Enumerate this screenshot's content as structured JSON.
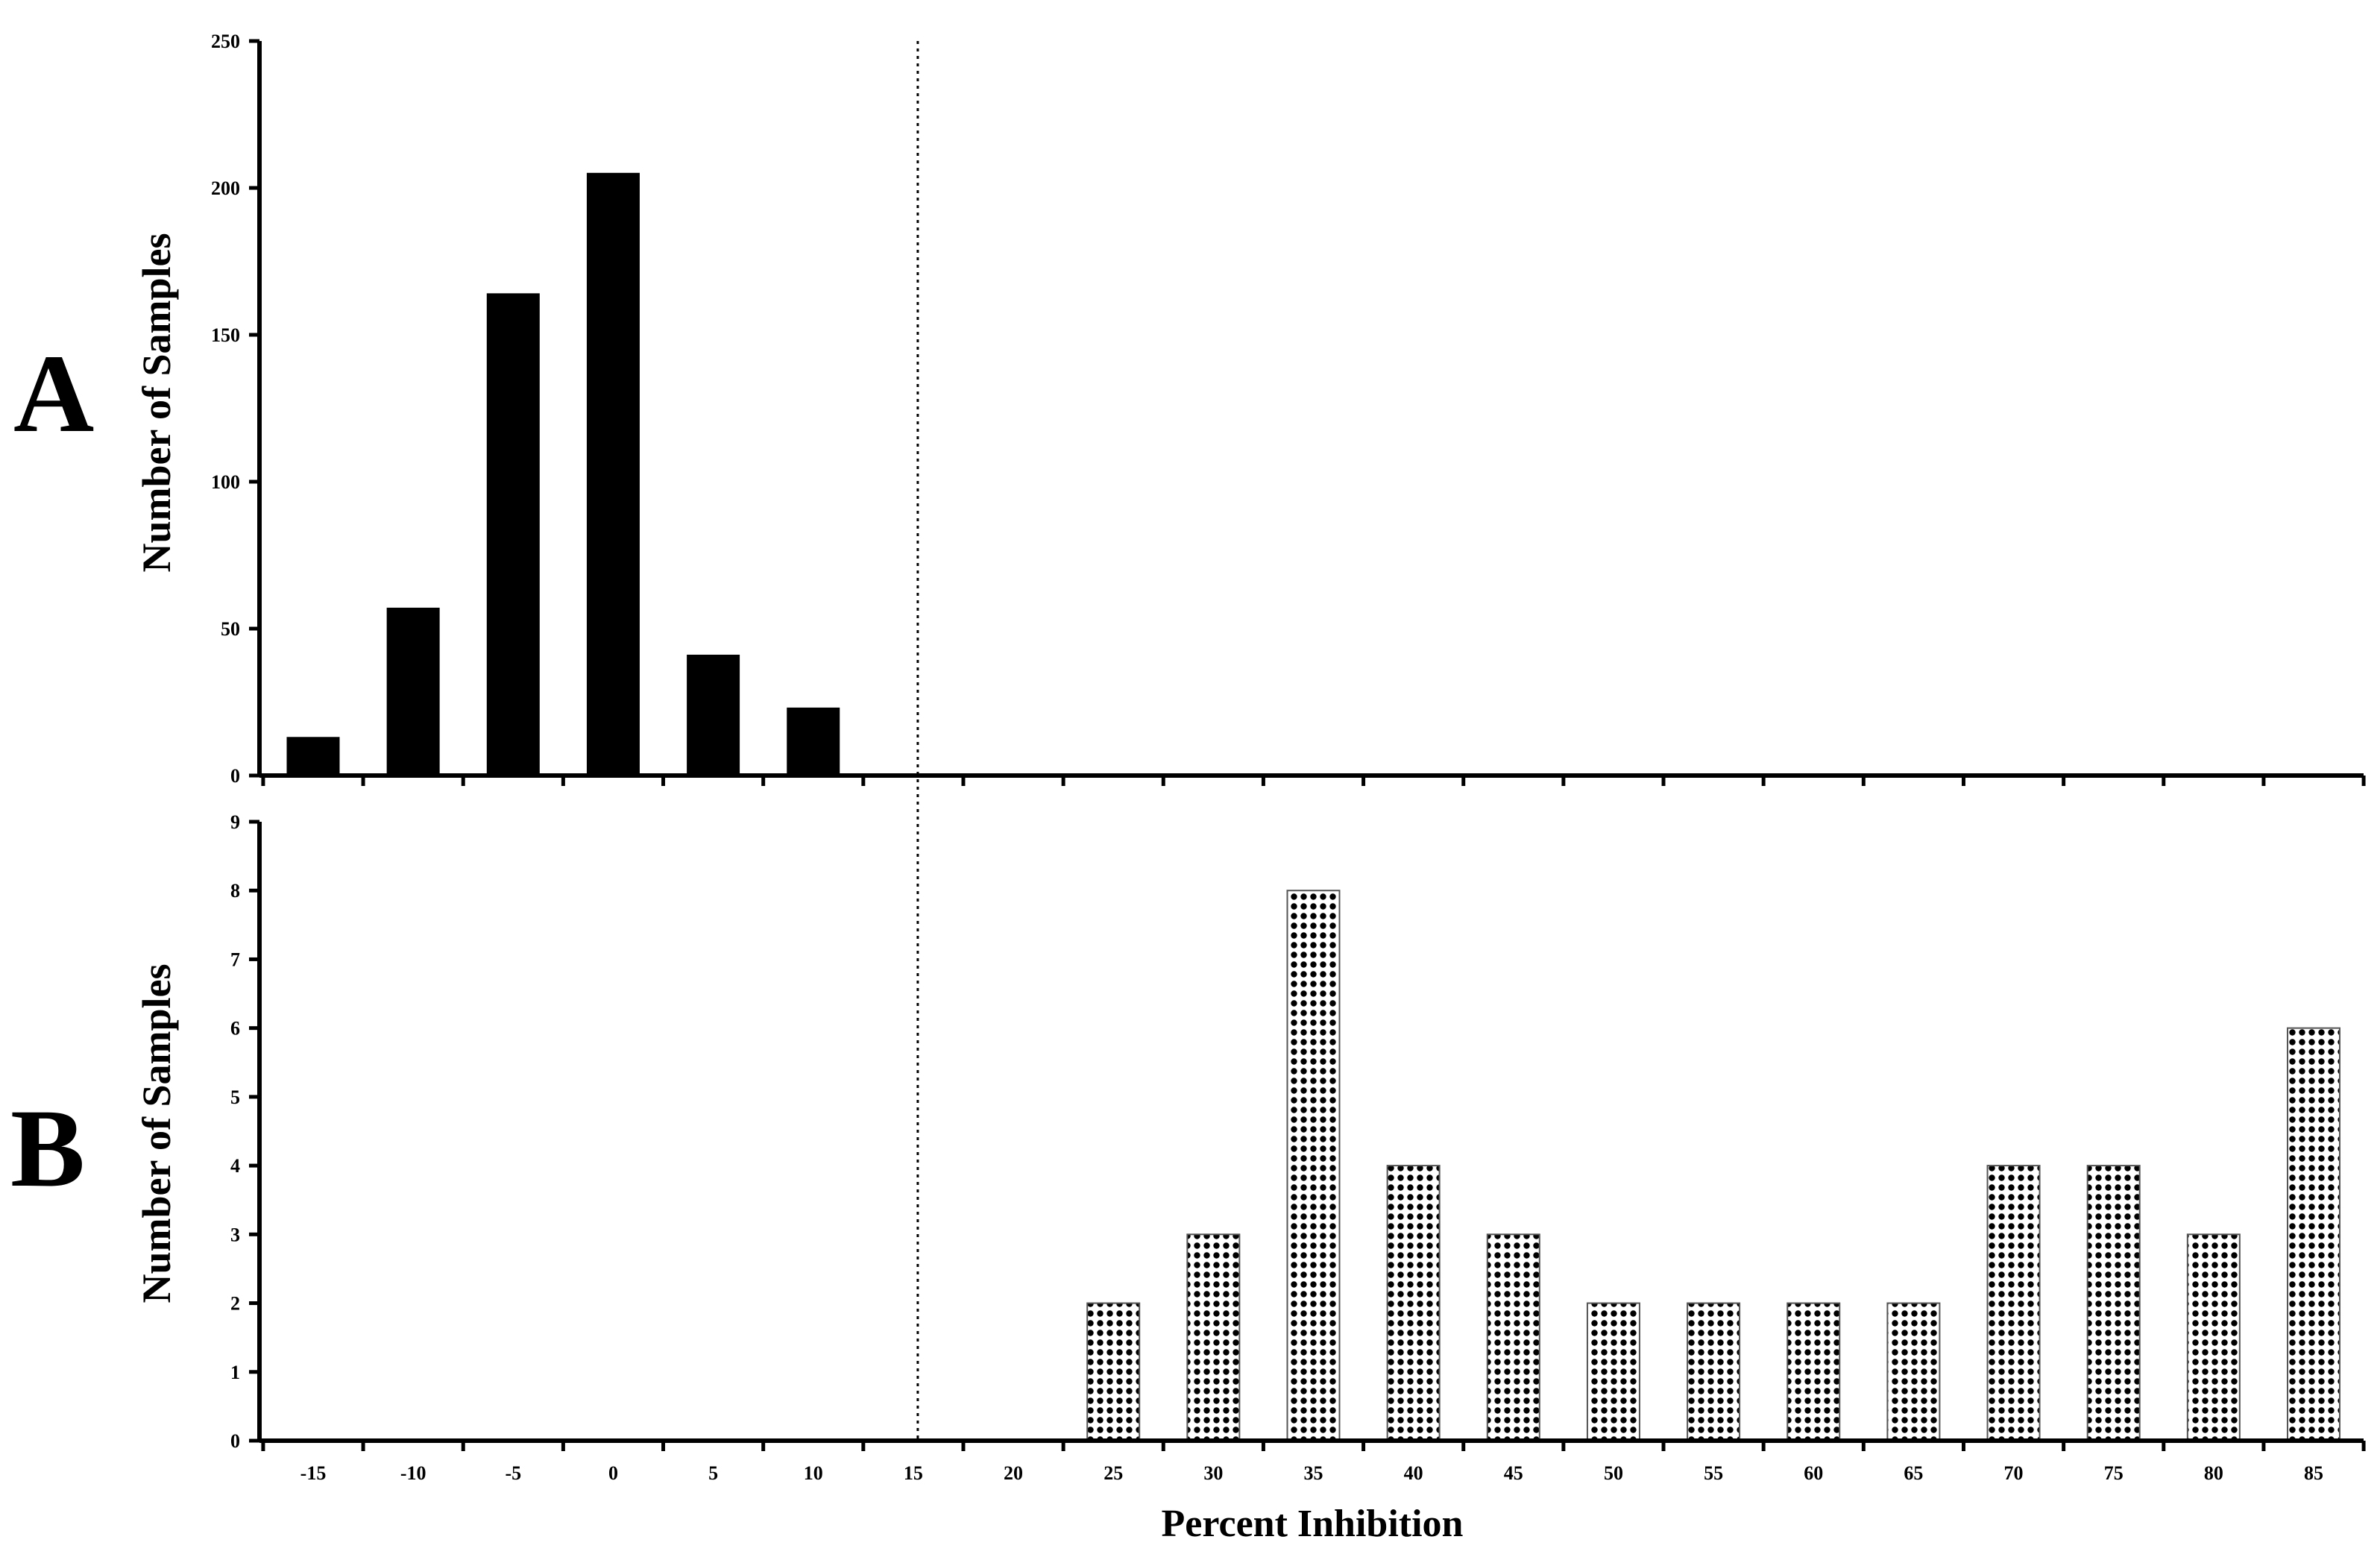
{
  "figure": {
    "xlabel": "Percent Inhibition",
    "cutoff_x": 15,
    "colors": {
      "axis": "#000000",
      "bar_a": "#000000",
      "bar_b_pattern": "dots-on-white"
    }
  },
  "chart_data": [
    {
      "type": "bar",
      "panel_label": "A",
      "ylabel": "Number of Samples",
      "categories": [
        "-15",
        "-10",
        "-5",
        "0",
        "5",
        "10",
        "15",
        "20",
        "25",
        "30",
        "35",
        "40",
        "45",
        "50",
        "55",
        "60",
        "65",
        "70",
        "75",
        "80",
        "85"
      ],
      "values": [
        13,
        57,
        164,
        205,
        41,
        23,
        0,
        0,
        0,
        0,
        0,
        0,
        0,
        0,
        0,
        0,
        0,
        0,
        0,
        0,
        0
      ],
      "ylim": [
        0,
        250
      ],
      "yticks": [
        "0",
        "50",
        "100",
        "150",
        "200",
        "250"
      ],
      "grid": false,
      "legend": "none",
      "bar_fill": "solid-black"
    },
    {
      "type": "bar",
      "panel_label": "B",
      "ylabel": "Number of Samples",
      "xlabel": "Percent Inhibition",
      "categories": [
        "-15",
        "-10",
        "-5",
        "0",
        "5",
        "10",
        "15",
        "20",
        "25",
        "30",
        "35",
        "40",
        "45",
        "50",
        "55",
        "60",
        "65",
        "70",
        "75",
        "80",
        "85"
      ],
      "values": [
        0,
        0,
        0,
        0,
        0,
        0,
        0,
        0,
        2,
        3,
        8,
        4,
        3,
        2,
        2,
        2,
        2,
        4,
        4,
        3,
        6
      ],
      "ylim": [
        0,
        9
      ],
      "yticks": [
        "0",
        "1",
        "2",
        "3",
        "4",
        "5",
        "6",
        "7",
        "8",
        "9"
      ],
      "grid": false,
      "legend": "none",
      "bar_fill": "dotted-pattern"
    }
  ]
}
